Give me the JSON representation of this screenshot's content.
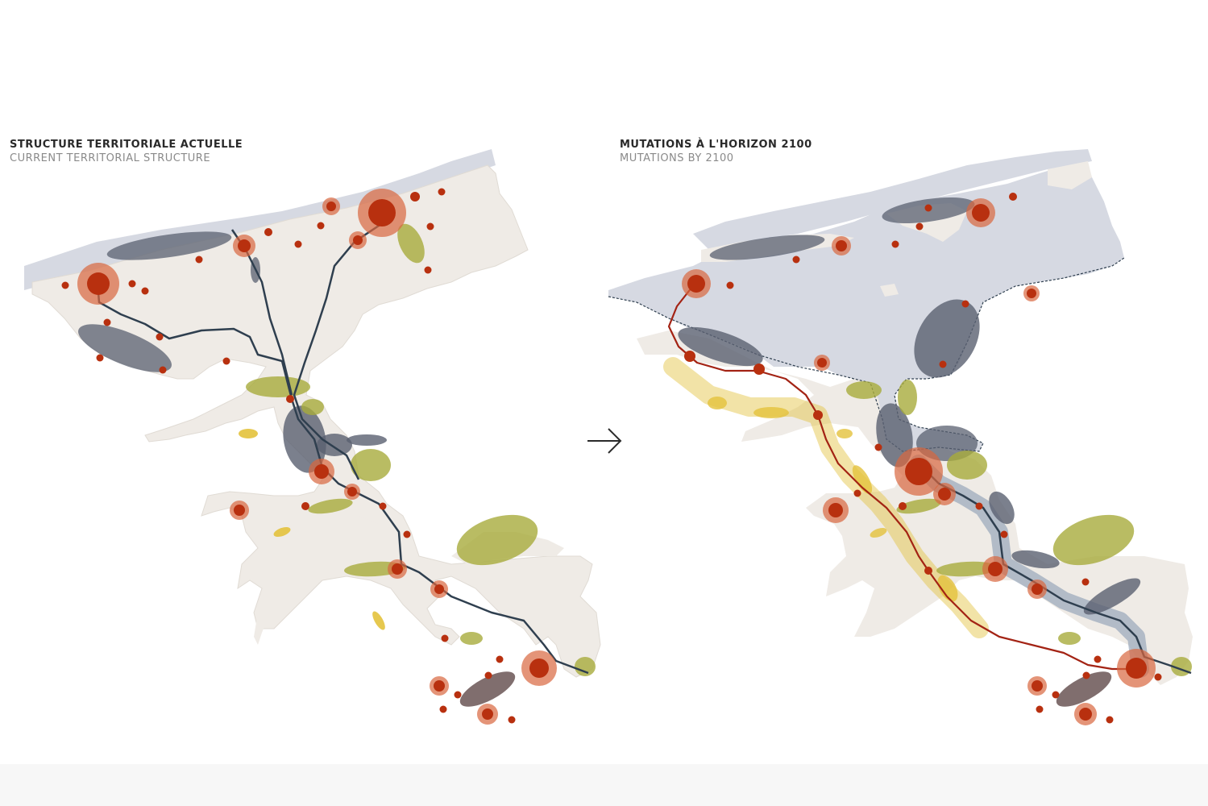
{
  "left_panel": {
    "title": "STRUCTURE TERRITORIALE ACTUELLE",
    "subtitle": "CURRENT TERRITORIAL STRUCTURE"
  },
  "right_panel": {
    "title": "MUTATIONS À L'HORIZON 2100",
    "subtitle": "MUTATIONS BY 2100"
  },
  "arrow_icon": "right-arrow-icon",
  "colors": {
    "land": "#efebe6",
    "sea": "#d6d9e2",
    "urban_node": "#b8300f",
    "urban_halo": "#d9673e",
    "network_line": "#2f3f4f",
    "river_line": "#a32314",
    "agri_zone": "#a7ab3c",
    "yellow_zone": "#e3c23c",
    "grey_zone": "#5a6070",
    "blue_corridor": "#7f93ad"
  }
}
